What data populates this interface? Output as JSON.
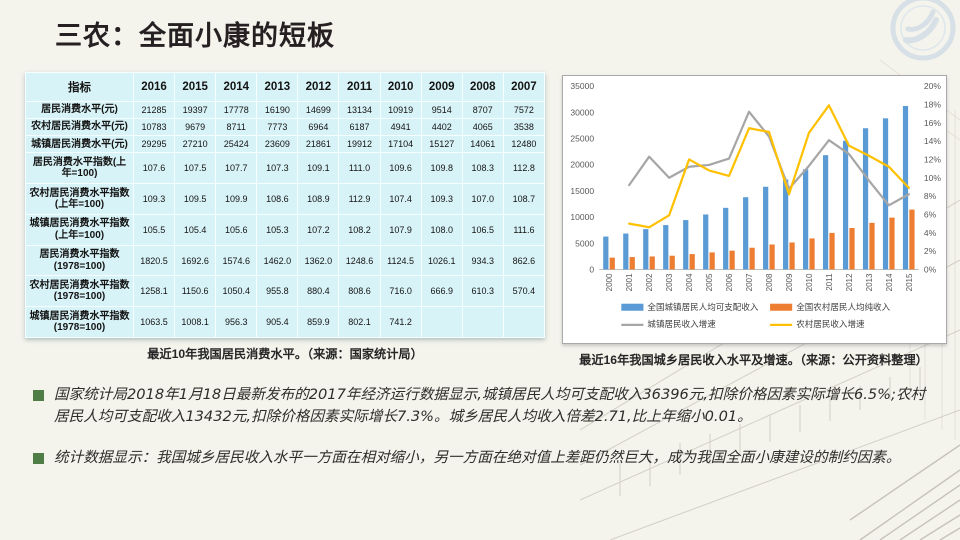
{
  "slide": {
    "title": "三农：全面小康的短板",
    "logo_icon": "circular-seal-watermark",
    "background": "pencil-sketch-of-traditional-building"
  },
  "colors": {
    "page_bg": "#f4f3ec",
    "title_text": "#262022",
    "table_bg": "#d8f3f7",
    "bullet_green": "#4e7d45",
    "bar_blue": "#5b9bd5",
    "bar_orange": "#ed7d31",
    "line_gray": "#a6a6a6",
    "line_yellow": "#ffc000"
  },
  "table": {
    "header": [
      "指标",
      "2016",
      "2015",
      "2014",
      "2013",
      "2012",
      "2011",
      "2010",
      "2009",
      "2008",
      "2007"
    ],
    "rows": [
      {
        "label": "居民消费水平(元)",
        "values": [
          "21285",
          "19397",
          "17778",
          "16190",
          "14699",
          "13134",
          "10919",
          "9514",
          "8707",
          "7572"
        ]
      },
      {
        "label": "农村居民消费水平(元)",
        "values": [
          "10783",
          "9679",
          "8711",
          "7773",
          "6964",
          "6187",
          "4941",
          "4402",
          "4065",
          "3538"
        ]
      },
      {
        "label": "城镇居民消费水平(元)",
        "values": [
          "29295",
          "27210",
          "25424",
          "23609",
          "21861",
          "19912",
          "17104",
          "15127",
          "14061",
          "12480"
        ]
      },
      {
        "label": "居民消费水平指数(上年=100)",
        "values": [
          "107.6",
          "107.5",
          "107.7",
          "107.3",
          "109.1",
          "111.0",
          "109.6",
          "109.8",
          "108.3",
          "112.8"
        ]
      },
      {
        "label": "农村居民消费水平指数(上年=100)",
        "values": [
          "109.3",
          "109.5",
          "109.9",
          "108.6",
          "108.9",
          "112.9",
          "107.4",
          "109.3",
          "107.0",
          "108.7"
        ]
      },
      {
        "label": "城镇居民消费水平指数(上年=100)",
        "values": [
          "105.5",
          "105.4",
          "105.6",
          "105.3",
          "107.2",
          "108.2",
          "107.9",
          "108.0",
          "106.5",
          "111.6"
        ]
      },
      {
        "label": "居民消费水平指数(1978=100)",
        "values": [
          "1820.5",
          "1692.6",
          "1574.6",
          "1462.0",
          "1362.0",
          "1248.6",
          "1124.5",
          "1026.1",
          "934.3",
          "862.6"
        ]
      },
      {
        "label": "农村居民消费水平指数(1978=100)",
        "values": [
          "1258.1",
          "1150.6",
          "1050.4",
          "955.8",
          "880.4",
          "808.6",
          "716.0",
          "666.9",
          "610.3",
          "570.4"
        ]
      },
      {
        "label": "城镇居民消费水平指数(1978=100)",
        "values": [
          "1063.5",
          "1008.1",
          "956.3",
          "905.4",
          "859.9",
          "802.1",
          "741.2",
          "",
          "",
          ""
        ]
      }
    ],
    "caption": "最近10年我国居民消费水平。（来源：国家统计局）"
  },
  "chart": {
    "caption": "最近16年我国城乡居民收入水平及增速。（来源：公开资料整理）"
  },
  "chart_data": {
    "type": "bar",
    "subtype": "combo-bar-line-dual-axis",
    "categories": [
      "2000",
      "2001",
      "2002",
      "2003",
      "2004",
      "2005",
      "2006",
      "2007",
      "2008",
      "2009",
      "2010",
      "2011",
      "2012",
      "2013",
      "2014",
      "2015"
    ],
    "series": [
      {
        "name": "全国城镇居民人均可支配收入",
        "kind": "bar",
        "axis": "left",
        "color": "#5b9bd5",
        "values": [
          6280,
          6860,
          7703,
          8472,
          9422,
          10493,
          11760,
          13786,
          15781,
          17175,
          19109,
          21810,
          24565,
          26955,
          28844,
          31195
        ]
      },
      {
        "name": "全国农村居民人均纯收入",
        "kind": "bar",
        "axis": "left",
        "color": "#ed7d31",
        "values": [
          2253,
          2366,
          2476,
          2622,
          2936,
          3255,
          3587,
          4140,
          4761,
          5153,
          5919,
          6977,
          7917,
          8896,
          9892,
          11422
        ]
      },
      {
        "name": "城镇居民收入增速",
        "kind": "line",
        "axis": "right",
        "color": "#a6a6a6",
        "values": [
          null,
          9.2,
          12.3,
          10.0,
          11.2,
          11.4,
          12.1,
          17.2,
          14.5,
          8.8,
          11.3,
          14.1,
          12.6,
          9.7,
          7.0,
          8.2
        ]
      },
      {
        "name": "农村居民收入增速",
        "kind": "line",
        "axis": "right",
        "color": "#ffc000",
        "values": [
          null,
          5.0,
          4.6,
          5.9,
          12.0,
          10.8,
          10.2,
          15.4,
          15.0,
          8.2,
          14.9,
          17.9,
          13.5,
          12.4,
          11.2,
          8.9
        ]
      }
    ],
    "left_axis": {
      "min": 0,
      "max": 35000,
      "step": 5000
    },
    "right_axis": {
      "min": 0,
      "max": 20,
      "step": 2,
      "suffix": "%"
    },
    "grid": false,
    "legend_position": "bottom",
    "x_tick_rotation": 90
  },
  "bullets": [
    "国家统计局2018年1月18日最新发布的2017年经济运行数据显示,城镇居民人均可支配收入36396元,扣除价格因素实际增长6.5%;农村居民人均可支配收入13432元,扣除价格因素实际增长7.3%。城乡居民人均收入倍差2.71,比上年缩小0.01。",
    "统计数据显示：我国城乡居民收入水平一方面在相对缩小，另一方面在绝对值上差距仍然巨大，成为我国全面小康建设的制约因素。"
  ]
}
